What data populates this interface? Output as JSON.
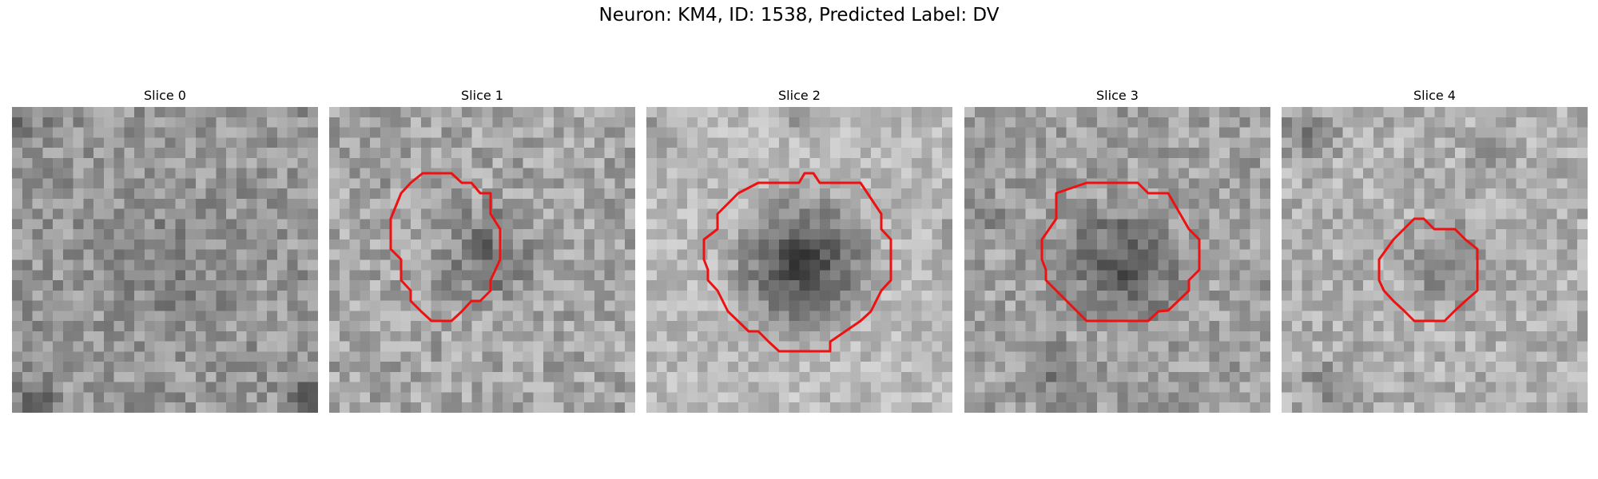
{
  "figure": {
    "title": "Neuron: KM4, ID: 1538, Predicted Label: DV"
  },
  "colors": {
    "outline": "#ee1111",
    "colormap": "grayscale"
  },
  "panels": [
    {
      "label": "Slice 0",
      "has_outline": false,
      "dark_center": 0.0
    },
    {
      "label": "Slice 1",
      "has_outline": true,
      "dark_center": 0.35
    },
    {
      "label": "Slice 2",
      "has_outline": true,
      "dark_center": 0.75
    },
    {
      "label": "Slice 3",
      "has_outline": true,
      "dark_center": 0.45
    },
    {
      "label": "Slice 4",
      "has_outline": true,
      "dark_center": 0.35
    }
  ]
}
